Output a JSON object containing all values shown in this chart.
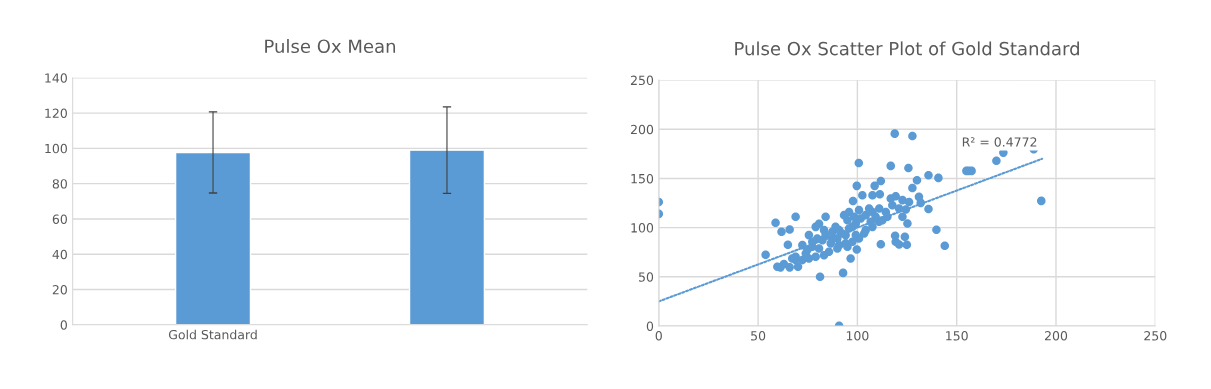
{
  "chart_data": [
    {
      "type": "bar",
      "title": "Pulse Ox Mean",
      "categories": [
        "Gold Standard",
        null
      ],
      "values": [
        97.7,
        99
      ],
      "errors": [
        23,
        24.5
      ],
      "color": "#5b9bd5",
      "ylim": [
        0,
        140
      ],
      "yticks": [
        0,
        20,
        40,
        60,
        80,
        100,
        120,
        140
      ],
      "grid": "y",
      "legend": false
    },
    {
      "type": "scatter",
      "title": "Pulse Ox Scatter Plot of Gold Standard",
      "xlim": [
        0,
        250
      ],
      "xticks": [
        0,
        50,
        100,
        150,
        200,
        250
      ],
      "ylim": [
        0,
        250
      ],
      "yticks": [
        0,
        50,
        100,
        150,
        200,
        250
      ],
      "grid": true,
      "legend": false,
      "annotations": [
        "R² = 0.4772"
      ],
      "series": [
        {
          "color": "#5b9bd5",
          "marker": "circle",
          "x": [
            0,
            0,
            53.8,
            58.8,
            61.8,
            65.9,
            68.9,
            65,
            59.7,
            61.3,
            63,
            65.9,
            70.1,
            67.2,
            72.3,
            68.9,
            74,
            75.6,
            79,
            80.7,
            84,
            81.2,
            90.8,
            92.8,
            96.6,
            99.7,
            77.3,
            82.4,
            87.4,
            90.8,
            94.1,
            97.5,
            93.3,
            95.8,
            97.8,
            99.7,
            100.7,
            102.5,
            107.6,
            108.7,
            111.8,
            111.3,
            116.8,
            118.8,
            127.7,
            125.7,
            130,
            127.7,
            135.8,
            140.8,
            135.8,
            139.8,
            111.8,
            119,
            121,
            123.9,
            124.9,
            119.3,
            116.8,
            119.3,
            122.7,
            126,
            131,
            131.9,
            124.4,
            125.2,
            122.7,
            115.1,
            110.9,
            107.6,
            104.2,
            100.8,
            97.5,
            94.1,
            89.9,
            85.7,
            83.2,
            79,
            75.6,
            72.3,
            68.9,
            74.8,
            80.7,
            86.6,
            89.9,
            92.4,
            95.8,
            99.2,
            101.7,
            104.2,
            107.6,
            111,
            114.3,
            105.9,
            100.8,
            98.3,
            95,
            89,
            84,
            79.8,
            77.3,
            83.2,
            87.4,
            90.8,
            95,
            99.2,
            103.4,
            106.7,
            109.2,
            112.6,
            117.6,
            121,
            144,
            154.9,
            156.1,
            157.5,
            173.5,
            188.8,
            192.6,
            170
          ],
          "values": [
            126,
            114,
            72.4,
            105,
            95.8,
            98.1,
            111,
            82.6,
            60.2,
            59.6,
            63,
            59.6,
            60.2,
            68.7,
            82.2,
            70.4,
            73.8,
            92.4,
            100.8,
            104,
            111,
            50,
            0.3,
            54,
            68.7,
            77.8,
            80.5,
            87.3,
            95.8,
            97.5,
            92.4,
            100.8,
            112.7,
            116,
            127,
            142.5,
            165.8,
            133,
            133,
            142.5,
            147.5,
            134,
            162.8,
            195.6,
            193.2,
            160.7,
            148.2,
            140.4,
            153.3,
            150.6,
            119,
            97.8,
            83.2,
            91.7,
            82.9,
            90.7,
            82.6,
            85.6,
            129.6,
            132,
            128,
            126,
            131.3,
            125.2,
            118.4,
            104.2,
            111,
            111,
            106,
            100.8,
            97.5,
            89,
            85.6,
            84,
            78.8,
            75.5,
            72,
            70.4,
            68.7,
            67,
            67,
            77.2,
            78.8,
            84,
            89,
            94,
            99.2,
            104.2,
            109.3,
            112.7,
            116,
            119.5,
            116,
            119.5,
            117.8,
            111,
            107.6,
            100.8,
            92.4,
            89,
            85.6,
            97.5,
            89,
            82.2,
            80.5,
            92.4,
            94,
            106,
            111,
            107.6,
            122.8,
            119.5,
            81.6,
            157.7,
            157.7,
            157.7,
            176.3,
            179.7,
            127.2,
            168
          ]
        },
        {
          "type": "line",
          "line_style": "dotted",
          "color": "#5b9bd5",
          "x": [
            0,
            193
          ],
          "values": [
            25,
            170
          ]
        }
      ]
    }
  ]
}
